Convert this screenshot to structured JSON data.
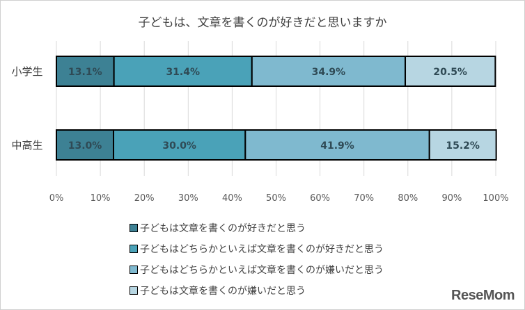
{
  "chart_data": {
    "type": "bar",
    "orientation": "horizontal-stacked-100",
    "title": "子どもは、文章を書くのが好きだと思いますか",
    "categories": [
      "小学生",
      "中高生"
    ],
    "series": [
      {
        "name": "子どもは文章を書くのが好きだと思う",
        "values": [
          13.1,
          13.0
        ],
        "color": "#3d8194"
      },
      {
        "name": "子どもはどちらかといえば文章を書くのが好きだと思う",
        "values": [
          31.4,
          30.0
        ],
        "color": "#4aa2b8"
      },
      {
        "name": "子どもはどちらかといえば文章を書くのが嫌いだと思う",
        "values": [
          34.9,
          41.9
        ],
        "color": "#7fb9cf"
      },
      {
        "name": "子どもは文章を書くのが嫌いだと思う",
        "values": [
          20.5,
          15.2
        ],
        "color": "#b7d6e2"
      }
    ],
    "xlim": [
      0,
      100
    ],
    "xticks": [
      "0%",
      "10%",
      "20%",
      "30%",
      "40%",
      "50%",
      "60%",
      "70%",
      "80%",
      "90%",
      "100%"
    ],
    "grid": true,
    "legend_position": "bottom"
  },
  "logo": "ReseMom"
}
